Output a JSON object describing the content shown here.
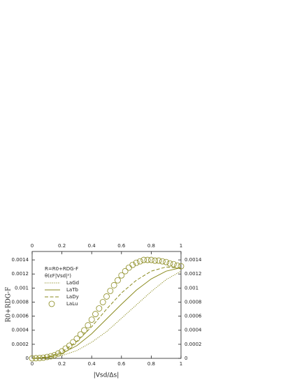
{
  "chart_data": {
    "type": "line",
    "xlabel": "|Vsd/Δs|",
    "ylabel": "R0+RDG-F",
    "legend_title": [
      "R=R0+RDG-F",
      "θ(εF|Vsd|²)"
    ],
    "xlim": [
      0,
      1
    ],
    "xticks": [
      0,
      0.2,
      0.4,
      0.6,
      0.8,
      1
    ],
    "ylim": [
      0,
      0.00152
    ],
    "yticks": [
      0,
      0.0002,
      0.0004,
      0.0006,
      0.0008,
      0.001,
      0.0012,
      0.0014
    ],
    "series": [
      {
        "name": "LaGd",
        "color": "#8a8a1e",
        "style": "dotted",
        "x": [
          0,
          0.1,
          0.2,
          0.3,
          0.4,
          0.5,
          0.6,
          0.7,
          0.8,
          0.9,
          1
        ],
        "values": [
          0,
          1e-05,
          4e-05,
          0.00011,
          0.00023,
          0.00038,
          0.00057,
          0.00076,
          0.00095,
          0.00112,
          0.00124
        ]
      },
      {
        "name": "LaTb",
        "color": "#8a8a1e",
        "style": "solid",
        "x": [
          0,
          0.1,
          0.2,
          0.3,
          0.4,
          0.5,
          0.6,
          0.7,
          0.8,
          0.9,
          1
        ],
        "values": [
          0,
          1e-05,
          7e-05,
          0.00018,
          0.00035,
          0.00056,
          0.00077,
          0.00097,
          0.00113,
          0.00124,
          0.00129
        ]
      },
      {
        "name": "LaDy",
        "color": "#8a8a1e",
        "style": "dashed",
        "x": [
          0,
          0.1,
          0.2,
          0.3,
          0.4,
          0.5,
          0.6,
          0.7,
          0.8,
          0.9,
          1
        ],
        "values": [
          0,
          2e-05,
          9e-05,
          0.00024,
          0.00045,
          0.0007,
          0.00093,
          0.00111,
          0.00124,
          0.0013,
          0.00128
        ]
      },
      {
        "name": "LaLu",
        "color": "#8a8a1e",
        "style": "circles",
        "x": [
          0,
          0.025,
          0.05,
          0.075,
          0.1,
          0.125,
          0.15,
          0.175,
          0.2,
          0.225,
          0.25,
          0.275,
          0.3,
          0.325,
          0.35,
          0.375,
          0.4,
          0.425,
          0.45,
          0.475,
          0.5,
          0.525,
          0.55,
          0.575,
          0.6,
          0.625,
          0.65,
          0.675,
          0.7,
          0.725,
          0.75,
          0.775,
          0.8,
          0.825,
          0.85,
          0.875,
          0.9,
          0.925,
          0.95,
          0.975,
          1
        ],
        "values": [
          0,
          2e-06,
          5e-06,
          1e-05,
          2e-05,
          3e-05,
          4.5e-05,
          7e-05,
          0.0001,
          0.00014,
          0.00018,
          0.00023,
          0.00028,
          0.00034,
          0.0004,
          0.00047,
          0.00055,
          0.00063,
          0.00071,
          0.0008,
          0.00088,
          0.00096,
          0.00104,
          0.00111,
          0.00118,
          0.00124,
          0.00129,
          0.00133,
          0.00136,
          0.00138,
          0.0014,
          0.0014,
          0.0014,
          0.00139,
          0.00139,
          0.00138,
          0.00137,
          0.00135,
          0.00134,
          0.00132,
          0.00131
        ]
      }
    ]
  }
}
